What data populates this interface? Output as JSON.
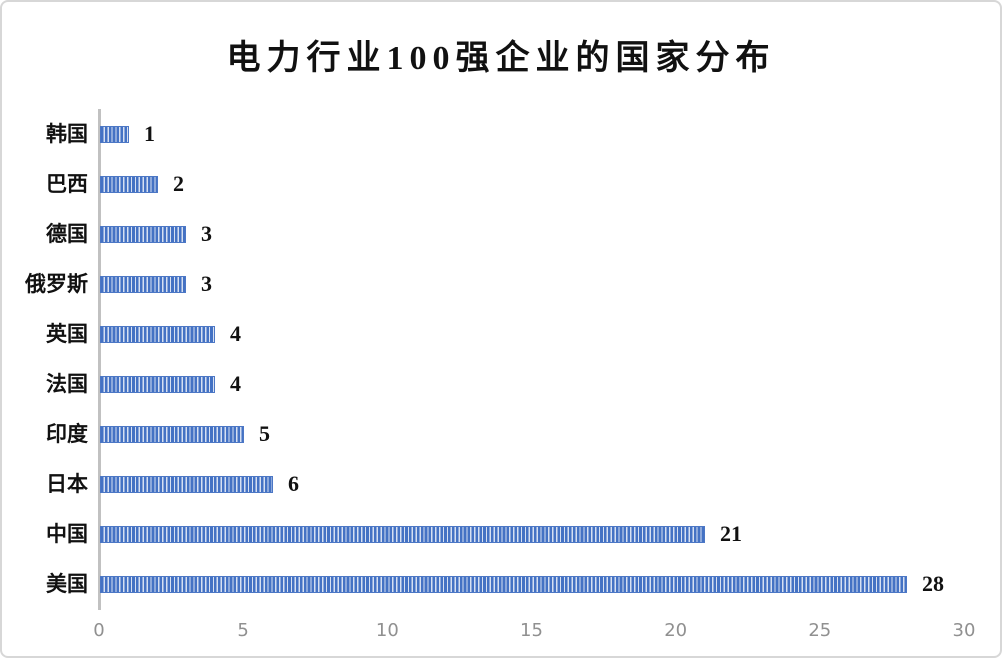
{
  "chart_data": {
    "type": "bar",
    "orientation": "horizontal",
    "title": "电力行业100强企业的国家分布",
    "categories": [
      "韩国",
      "巴西",
      "德国",
      "俄罗斯",
      "英国",
      "法国",
      "印度",
      "日本",
      "中国",
      "美国"
    ],
    "values": [
      1,
      2,
      3,
      3,
      4,
      4,
      5,
      6,
      21,
      28
    ],
    "xlim": [
      0,
      30
    ],
    "x_ticks": [
      "0",
      "5",
      "10",
      "15",
      "20",
      "25",
      "30"
    ],
    "x_tick_values": [
      0,
      5,
      10,
      15,
      20,
      25,
      30
    ],
    "grid": false,
    "legend": false,
    "colors": {
      "bar_stripe_foreground": "#4472c4",
      "bar_stripe_background": "#d6e0f2",
      "axis_line": "#c1c1c1",
      "tick_label": "#909090",
      "text": "#111111",
      "card_border": "#d7d7d7",
      "background": "#ffffff"
    }
  }
}
